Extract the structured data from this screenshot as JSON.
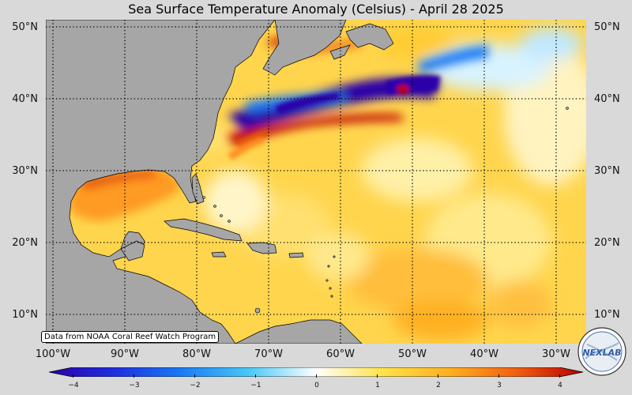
{
  "title": "Sea Surface Temperature Anomaly (Celsius) - April 28 2025",
  "latitude_labels": [
    "50°N",
    "40°N",
    "30°N",
    "20°N",
    "10°N"
  ],
  "longitude_labels": [
    "100°W",
    "90°W",
    "80°W",
    "70°W",
    "60°W",
    "50°W",
    "40°W",
    "30°W"
  ],
  "credit": "Data from NOAA Coral Reef Watch Program",
  "colorbar": {
    "ticks": [
      "−4",
      "−3",
      "−2",
      "−1",
      "0",
      "1",
      "2",
      "3",
      "4"
    ],
    "min": -4,
    "max": 4,
    "colors": [
      "#2a00a8",
      "#1f2fe0",
      "#1a7cf5",
      "#49c9f7",
      "#ffffff",
      "#ffe24a",
      "#ffb020",
      "#f06010",
      "#b80000"
    ]
  },
  "logo_text": "NEXLAB",
  "colors": {
    "land": "#a6a6a6",
    "ocean_base": "#ffd24a",
    "background": "#d9d9d9"
  }
}
